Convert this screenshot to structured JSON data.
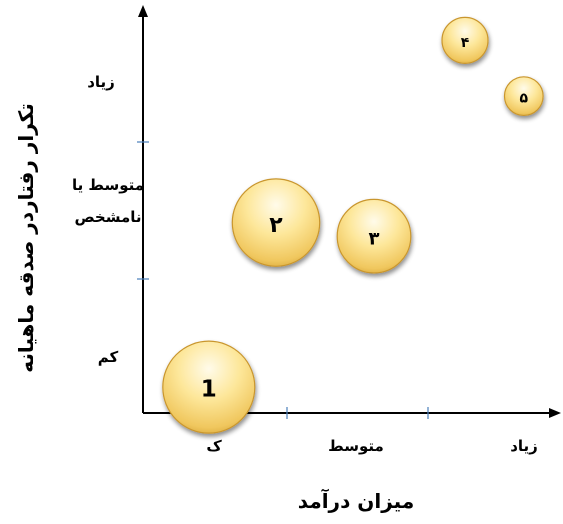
{
  "chart_data": {
    "type": "bubble",
    "xlabel": "میزان درآمد",
    "ylabel": "تکرار رفتاردر صدقه ماهیانه",
    "x_ticks": [
      "ک",
      "متوسط",
      "زیاد"
    ],
    "y_ticks": [
      "کم",
      "متوسط یا\nنامشخص",
      "زیاد"
    ],
    "points": [
      {
        "label": "1",
        "x": 0.47,
        "y": 0.19,
        "size": 1.0
      },
      {
        "label": "۲",
        "x": 0.95,
        "y": 1.4,
        "size": 0.95
      },
      {
        "label": "۳",
        "x": 1.65,
        "y": 1.3,
        "size": 0.8
      },
      {
        "label": "۴",
        "x": 2.3,
        "y": 2.74,
        "size": 0.5
      },
      {
        "label": "۵",
        "x": 2.72,
        "y": 2.33,
        "size": 0.42
      }
    ],
    "xlim": [
      0,
      3
    ],
    "ylim": [
      0,
      3
    ],
    "grid": false,
    "legend": "none"
  }
}
